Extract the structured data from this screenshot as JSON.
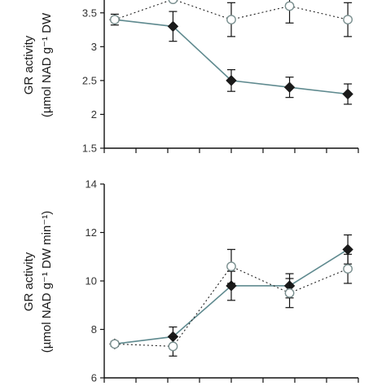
{
  "colors": {
    "axis": "#111111",
    "tick_text": "#333333",
    "filled_marker": "#1a1a1a",
    "open_marker_fill": "#ffffff",
    "open_marker_stroke": "#7a8f8f",
    "solid_line": "#5f8a8f",
    "dotted_line": "#222222",
    "error_bar": "#111111"
  },
  "chart_data": [
    {
      "type": "line",
      "ylabel_line1": "GR activity",
      "ylabel_line2": "(µmol NAD g⁻¹ DW",
      "ylim": [
        1.5,
        3.75
      ],
      "yticks": [
        "1.5",
        "2",
        "2.5",
        "3",
        "3.5"
      ],
      "ytick_values": [
        1.5,
        2,
        2.5,
        3,
        3.5
      ],
      "x": [
        1,
        2,
        3,
        4,
        5
      ],
      "xlim": [
        0.82,
        5.18
      ],
      "grid": false,
      "series": [
        {
          "marker": "filled-diamond",
          "line": "solid",
          "values": [
            3.4,
            3.3,
            2.5,
            2.4,
            2.3
          ],
          "errors": [
            0.08,
            0.22,
            0.16,
            0.15,
            0.15
          ]
        },
        {
          "marker": "open-circle",
          "line": "dotted",
          "values": [
            3.4,
            3.7,
            3.4,
            3.6,
            3.4
          ],
          "errors": [
            0.0,
            0.0,
            0.25,
            0.25,
            0.25
          ]
        }
      ]
    },
    {
      "type": "line",
      "ylabel_line1": "GR activity",
      "ylabel_line2": "(µmol NAD g⁻¹ DW min⁻¹)",
      "ylim": [
        6,
        14
      ],
      "yticks": [
        "6",
        "8",
        "10",
        "12",
        "14"
      ],
      "ytick_values": [
        6,
        8,
        10,
        12,
        14
      ],
      "x": [
        1,
        2,
        3,
        4,
        5
      ],
      "xlim": [
        0.82,
        5.18
      ],
      "grid": false,
      "series": [
        {
          "marker": "filled-diamond",
          "line": "solid",
          "values": [
            7.4,
            7.7,
            9.8,
            9.8,
            11.3
          ],
          "errors": [
            0.1,
            0.4,
            0.6,
            0.5,
            0.6
          ]
        },
        {
          "marker": "open-circle",
          "line": "dotted",
          "values": [
            7.4,
            7.3,
            10.6,
            9.5,
            10.5
          ],
          "errors": [
            0.1,
            0.4,
            0.7,
            0.6,
            0.6
          ]
        }
      ]
    }
  ]
}
